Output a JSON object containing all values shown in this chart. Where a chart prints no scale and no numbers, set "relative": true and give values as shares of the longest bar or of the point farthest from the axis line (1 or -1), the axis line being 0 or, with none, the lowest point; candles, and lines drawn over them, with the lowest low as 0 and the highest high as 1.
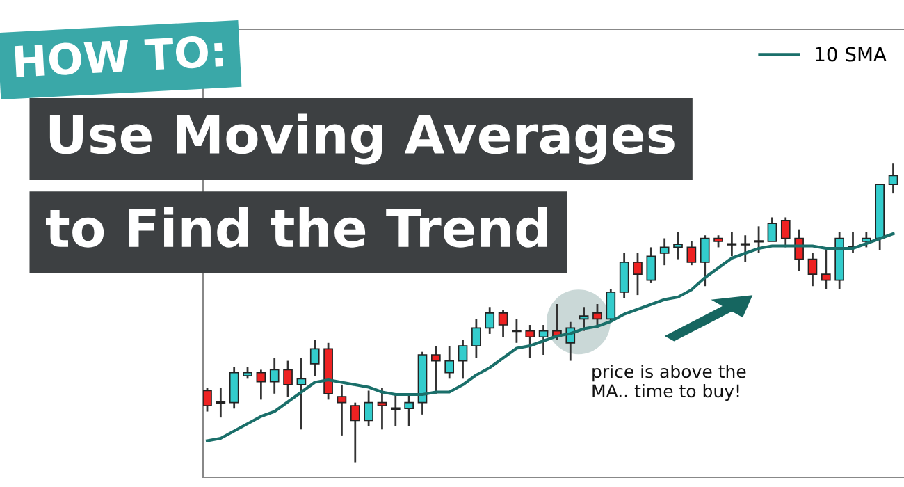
{
  "chart_data": [
    {
      "type": "candlestick",
      "title": "Use Moving Averages",
      "subtitle": "to Find the Trend",
      "annotations": [
        "HOW TO:",
        "price is above the\nMA.. time to buy!"
      ],
      "relative": true,
      "categories": [
        null,
        null,
        null,
        null,
        null,
        null,
        null,
        null,
        null,
        null,
        null,
        null,
        null,
        null,
        null,
        null,
        null,
        null,
        null,
        null,
        null,
        null,
        null,
        null,
        null,
        null,
        null,
        null,
        null,
        null,
        null,
        null,
        null,
        null,
        null,
        null,
        null,
        null,
        null,
        null,
        null,
        null,
        null,
        null,
        null,
        null,
        null,
        null,
        null,
        null,
        null,
        null
      ],
      "ohlc": [
        [
          0.24,
          0.25,
          0.17,
          0.19
        ],
        [
          0.2,
          0.25,
          0.15,
          0.2
        ],
        [
          0.2,
          0.32,
          0.18,
          0.3
        ],
        [
          0.29,
          0.32,
          0.28,
          0.3
        ],
        [
          0.3,
          0.31,
          0.21,
          0.27
        ],
        [
          0.27,
          0.35,
          0.23,
          0.31
        ],
        [
          0.31,
          0.34,
          0.22,
          0.26
        ],
        [
          0.26,
          0.35,
          0.11,
          0.28
        ],
        [
          0.33,
          0.41,
          0.29,
          0.38
        ],
        [
          0.38,
          0.4,
          0.21,
          0.23
        ],
        [
          0.22,
          0.26,
          0.09,
          0.2
        ],
        [
          0.19,
          0.2,
          0,
          0.14
        ],
        [
          0.14,
          0.24,
          0.12,
          0.2
        ],
        [
          0.2,
          0.25,
          0.11,
          0.19
        ],
        [
          0.18,
          0.23,
          0.12,
          0.18
        ],
        [
          0.18,
          0.23,
          0.12,
          0.2
        ],
        [
          0.2,
          0.37,
          0.16,
          0.36
        ],
        [
          0.36,
          0.39,
          0.23,
          0.34
        ],
        [
          0.3,
          0.39,
          0.28,
          0.34
        ],
        [
          0.34,
          0.41,
          0.28,
          0.39
        ],
        [
          0.39,
          0.48,
          0.35,
          0.45
        ],
        [
          0.45,
          0.52,
          0.43,
          0.5
        ],
        [
          0.5,
          0.51,
          0.42,
          0.46
        ],
        [
          0.44,
          0.48,
          0.4,
          0.44
        ],
        [
          0.44,
          0.46,
          0.35,
          0.42
        ],
        [
          0.42,
          0.46,
          0.36,
          0.44
        ],
        [
          0.44,
          0.53,
          0.41,
          0.42
        ],
        [
          0.4,
          0.47,
          0.34,
          0.45
        ],
        [
          0.48,
          0.52,
          0.44,
          0.49
        ],
        [
          0.5,
          0.53,
          0.45,
          0.48
        ],
        [
          0.48,
          0.58,
          0.47,
          0.57
        ],
        [
          0.57,
          0.7,
          0.55,
          0.67
        ],
        [
          0.67,
          0.7,
          0.56,
          0.63
        ],
        [
          0.61,
          0.72,
          0.6,
          0.69
        ],
        [
          0.7,
          0.75,
          0.66,
          0.72
        ],
        [
          0.72,
          0.77,
          0.68,
          0.73
        ],
        [
          0.72,
          0.74,
          0.66,
          0.67
        ],
        [
          0.67,
          0.76,
          0.59,
          0.75
        ],
        [
          0.75,
          0.76,
          0.72,
          0.74
        ],
        [
          0.73,
          0.77,
          0.69,
          0.73
        ],
        [
          0.73,
          0.76,
          0.67,
          0.73
        ],
        [
          0.74,
          0.79,
          0.7,
          0.74
        ],
        [
          0.74,
          0.82,
          0.74,
          0.8
        ],
        [
          0.81,
          0.82,
          0.72,
          0.75
        ],
        [
          0.75,
          0.78,
          0.64,
          0.68
        ],
        [
          0.68,
          0.7,
          0.59,
          0.63
        ],
        [
          0.63,
          0.72,
          0.58,
          0.61
        ],
        [
          0.61,
          0.77,
          0.58,
          0.75
        ],
        [
          0.72,
          0.77,
          0.7,
          0.72
        ],
        [
          0.74,
          0.77,
          0.72,
          0.75
        ],
        [
          0.75,
          0.93,
          0.71,
          0.93
        ],
        [
          0.93,
          1,
          0.9,
          0.96
        ]
      ],
      "colors": [
        "#ee2222",
        "#222222",
        "#33cccc",
        "#33cccc",
        "#ee2222",
        "#33cccc",
        "#ee2222",
        "#33cccc",
        "#33cccc",
        "#ee2222",
        "#ee2222",
        "#ee2222",
        "#33cccc",
        "#ee2222",
        "#ee2222",
        "#33cccc",
        "#33cccc",
        "#ee2222",
        "#33cccc",
        "#33cccc",
        "#33cccc",
        "#33cccc",
        "#ee2222",
        "#222222",
        "#ee2222",
        "#33cccc",
        "#ee2222",
        "#33cccc",
        "#33cccc",
        "#ee2222",
        "#33cccc",
        "#33cccc",
        "#ee2222",
        "#33cccc",
        "#33cccc",
        "#33cccc",
        "#ee2222",
        "#33cccc",
        "#ee2222",
        "#222222",
        "#222222",
        "#222222",
        "#33cccc",
        "#ee2222",
        "#ee2222",
        "#ee2222",
        "#ee2222",
        "#33cccc",
        "#222222",
        "#33cccc",
        "#33cccc",
        "#33cccc"
      ]
    },
    {
      "type": "line",
      "relative": true,
      "legend": "top right",
      "categories": [
        null,
        null,
        null,
        null,
        null,
        null,
        null,
        null,
        null,
        null,
        null,
        null,
        null,
        null,
        null,
        null,
        null,
        null,
        null,
        null,
        null,
        null,
        null,
        null,
        null,
        null,
        null,
        null,
        null,
        null,
        null,
        null,
        null,
        null,
        null,
        null,
        null,
        null,
        null,
        null,
        null,
        null,
        null,
        null,
        null,
        null,
        null,
        null,
        null,
        null,
        null,
        null
      ],
      "series": [
        {
          "name": "10 SMA",
          "color": "#1a6f6a",
          "values": [
            0.15,
            0.16,
            0.19,
            0.22,
            0.25,
            0.27,
            0.31,
            0.35,
            0.39,
            0.4,
            0.39,
            0.38,
            0.37,
            0.35,
            0.34,
            0.34,
            0.34,
            0.35,
            0.35,
            0.38,
            0.42,
            0.45,
            0.49,
            0.53,
            0.54,
            0.56,
            0.58,
            0.59,
            0.61,
            0.62,
            0.64,
            0.67,
            0.69,
            0.71,
            0.73,
            0.74,
            0.77,
            0.82,
            0.86,
            0.9,
            0.92,
            0.94,
            0.95,
            0.95,
            0.95,
            0.95,
            0.94,
            0.94,
            0.94,
            0.96,
            0.98,
            1
          ]
        }
      ]
    }
  ]
}
